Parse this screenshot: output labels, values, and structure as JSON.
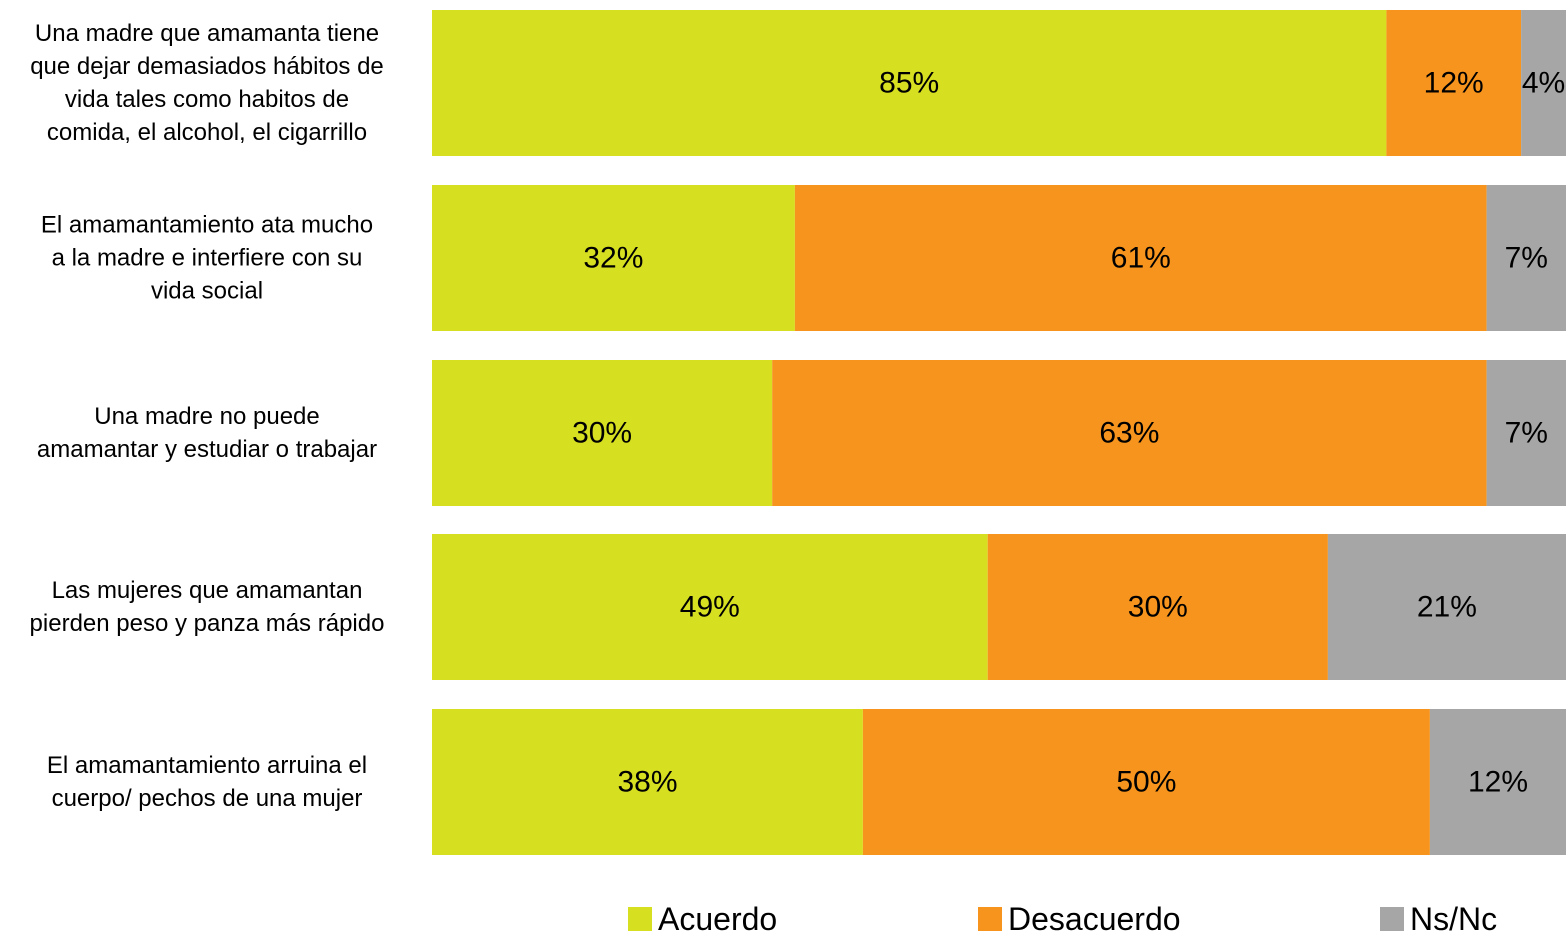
{
  "chart_data": {
    "type": "bar",
    "orientation": "horizontal",
    "stacked": true,
    "percent": true,
    "categories": [
      [
        "Una madre que amamanta tiene",
        "que dejar demasiados hábitos de",
        "vida tales como habitos de",
        "comida, el alcohol, el cigarrillo"
      ],
      [
        "El amamantamiento ata mucho",
        "a la madre e interfiere con su",
        "vida social"
      ],
      [
        "Una madre no puede",
        "amamantar y estudiar o trabajar"
      ],
      [
        "Las mujeres que amamantan",
        "pierden peso y panza más rápido"
      ],
      [
        "El amamantamiento arruina el",
        "cuerpo/ pechos de una mujer"
      ]
    ],
    "series": [
      {
        "name": "Acuerdo",
        "color": "#d7df21",
        "values": [
          85,
          32,
          30,
          49,
          38
        ],
        "labels": [
          "85%",
          "32%",
          "30%",
          "49%",
          "38%"
        ]
      },
      {
        "name": "Desacuerdo",
        "color": "#f7941d",
        "values": [
          12,
          61,
          63,
          30,
          50
        ],
        "labels": [
          "12%",
          "61%",
          "63%",
          "30%",
          "50%"
        ]
      },
      {
        "name": "Ns/Nc",
        "color": "#a6a6a6",
        "values": [
          4,
          7,
          7,
          21,
          12
        ],
        "labels": [
          "4%",
          "7%",
          "7%",
          "21%",
          "12%"
        ]
      }
    ],
    "legend_position": "bottom",
    "grid": false
  }
}
